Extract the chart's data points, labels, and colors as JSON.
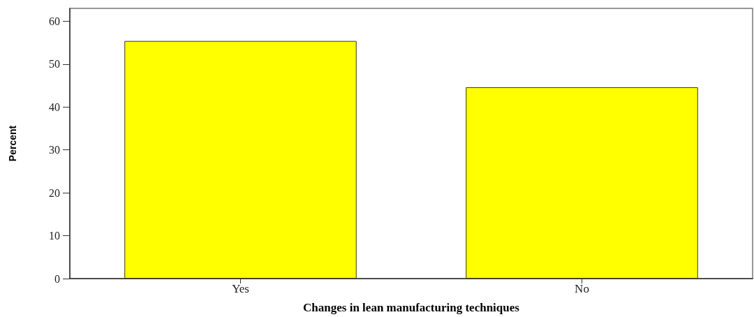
{
  "chart_data": {
    "type": "bar",
    "xlabel": "Changes in lean manufacturing techniques",
    "ylabel": "Percent",
    "categories": [
      "Yes",
      "No"
    ],
    "series": [
      {
        "color": "#ffff00",
        "values": [
          55.4,
          44.6
        ]
      }
    ],
    "ylim": [
      0,
      63
    ],
    "yticks": [
      0,
      10,
      20,
      30,
      40,
      50,
      60
    ],
    "grid": false
  }
}
